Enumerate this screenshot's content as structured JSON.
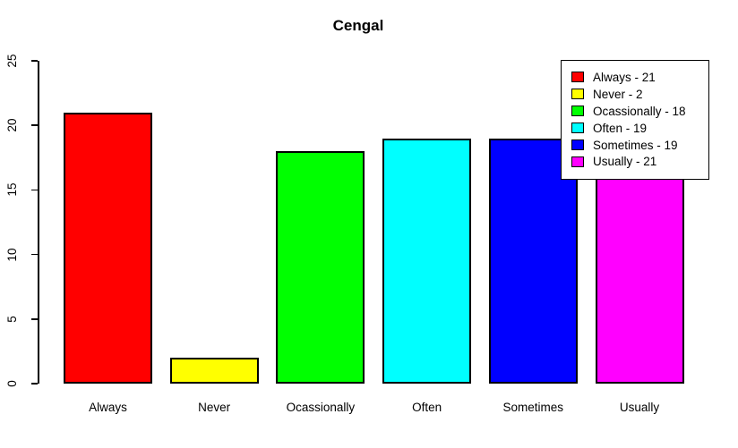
{
  "chart_data": {
    "type": "bar",
    "title": "Cengal",
    "categories": [
      "Always",
      "Never",
      "Ocassionally",
      "Often",
      "Sometimes",
      "Usually"
    ],
    "values": [
      21,
      2,
      18,
      19,
      19,
      21
    ],
    "colors": [
      "#FF0000",
      "#FFFF00",
      "#00FF00",
      "#00FFFF",
      "#0000FF",
      "#FF00FF"
    ],
    "xlabel": "",
    "ylabel": "",
    "ylim": [
      0,
      25
    ],
    "yticks": [
      0,
      5,
      10,
      15,
      20,
      25
    ],
    "grid": false,
    "legend_position": "top-right",
    "legend": [
      {
        "label": "Always - 21",
        "color": "#FF0000"
      },
      {
        "label": "Never - 2",
        "color": "#FFFF00"
      },
      {
        "label": "Ocassionally - 18",
        "color": "#00FF00"
      },
      {
        "label": "Often - 19",
        "color": "#00FFFF"
      },
      {
        "label": "Sometimes - 19",
        "color": "#0000FF"
      },
      {
        "label": "Usually - 21",
        "color": "#FF00FF"
      }
    ]
  }
}
